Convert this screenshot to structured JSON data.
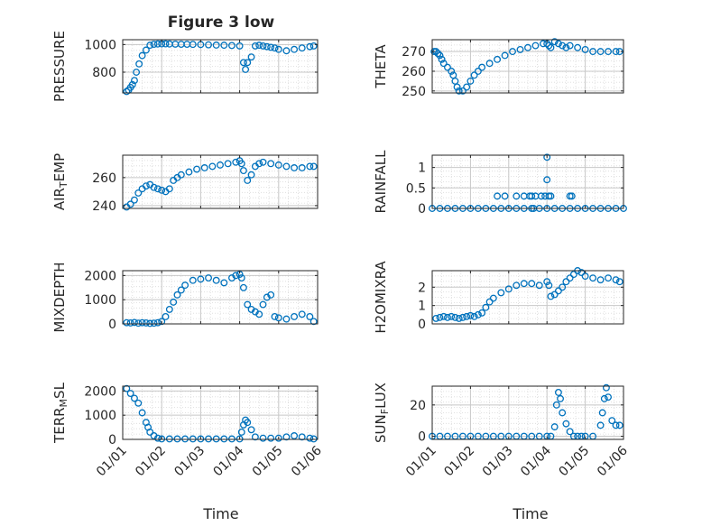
{
  "figure": {
    "title": "Figure 3 low",
    "xlabel": "Time",
    "x_tick_labels": [
      "01/01",
      "01/02",
      "01/03",
      "01/04",
      "01/05",
      "01/06"
    ],
    "marker_color": "#0072BD",
    "marker": "open-circle"
  },
  "chart_data": [
    {
      "id": "pressure",
      "type": "scatter",
      "ylabel": "PRESSURE",
      "ylim": [
        650,
        1035
      ],
      "yticks": [
        800,
        1000
      ],
      "ytick_labels": [
        "800",
        "1000"
      ],
      "xlim": [
        0,
        5
      ],
      "grid": true,
      "minor_grid": true,
      "x": [
        0.1,
        0.15,
        0.2,
        0.25,
        0.3,
        0.35,
        0.42,
        0.5,
        0.6,
        0.7,
        0.8,
        0.9,
        1.0,
        1.1,
        1.2,
        1.35,
        1.5,
        1.65,
        1.8,
        2.0,
        2.2,
        2.4,
        2.6,
        2.8,
        3.0,
        3.1,
        3.15,
        3.2,
        3.3,
        3.4,
        3.5,
        3.6,
        3.7,
        3.8,
        3.9,
        4.0,
        4.2,
        4.4,
        4.6,
        4.8,
        4.9
      ],
      "y": [
        660,
        670,
        690,
        710,
        740,
        800,
        860,
        920,
        960,
        995,
        1002,
        1004,
        1005,
        1005,
        1004,
        1003,
        1002,
        1002,
        1001,
        1000,
        998,
        996,
        995,
        993,
        990,
        870,
        820,
        870,
        910,
        990,
        995,
        990,
        985,
        980,
        975,
        965,
        955,
        965,
        975,
        985,
        990
      ]
    },
    {
      "id": "theta",
      "type": "scatter",
      "ylabel": "THETA",
      "ylim": [
        249,
        276
      ],
      "yticks": [
        250,
        260,
        270
      ],
      "ytick_labels": [
        "250",
        "260",
        "270"
      ],
      "xlim": [
        0,
        5
      ],
      "grid": true,
      "minor_grid": true,
      "x": [
        0.05,
        0.1,
        0.15,
        0.2,
        0.25,
        0.3,
        0.4,
        0.5,
        0.55,
        0.6,
        0.65,
        0.7,
        0.8,
        0.9,
        1.0,
        1.1,
        1.2,
        1.3,
        1.5,
        1.7,
        1.9,
        2.1,
        2.3,
        2.5,
        2.7,
        2.9,
        3.0,
        3.05,
        3.1,
        3.2,
        3.3,
        3.4,
        3.5,
        3.6,
        3.8,
        4.0,
        4.2,
        4.4,
        4.6,
        4.8,
        4.9
      ],
      "y": [
        270,
        270,
        269,
        268,
        266,
        264,
        262,
        260,
        258,
        255,
        252,
        250,
        250,
        252,
        255,
        258,
        260,
        262,
        264,
        266,
        268,
        270,
        271,
        272,
        273,
        274,
        274,
        273,
        272,
        275,
        274,
        273,
        272,
        273,
        272,
        271,
        270,
        270,
        270,
        270,
        270
      ]
    },
    {
      "id": "air_temp",
      "type": "scatter",
      "ylabel": "AIR_TEMP",
      "ylim": [
        238,
        276
      ],
      "yticks": [
        240,
        260
      ],
      "ytick_labels": [
        "240",
        "260"
      ],
      "xlim": [
        0,
        5
      ],
      "grid": true,
      "minor_grid": true,
      "x": [
        0.1,
        0.2,
        0.3,
        0.4,
        0.5,
        0.6,
        0.7,
        0.8,
        0.9,
        1.0,
        1.1,
        1.2,
        1.3,
        1.4,
        1.5,
        1.7,
        1.9,
        2.1,
        2.3,
        2.5,
        2.7,
        2.9,
        3.0,
        3.05,
        3.1,
        3.2,
        3.3,
        3.4,
        3.5,
        3.6,
        3.8,
        4.0,
        4.2,
        4.4,
        4.6,
        4.8,
        4.9
      ],
      "y": [
        239,
        241,
        244,
        249,
        252,
        254,
        255,
        253,
        252,
        251,
        250,
        252,
        258,
        260,
        262,
        264,
        266,
        267,
        268,
        269,
        270,
        271,
        272,
        270,
        265,
        258,
        262,
        268,
        270,
        271,
        270,
        269,
        268,
        267,
        267,
        268,
        268
      ]
    },
    {
      "id": "rainfall",
      "type": "scatter",
      "ylabel": "RAINFALL",
      "ylim": [
        0,
        1.3
      ],
      "yticks": [
        0,
        0.5,
        1
      ],
      "ytick_labels": [
        "0",
        "0.5",
        "1"
      ],
      "xlim": [
        0,
        5
      ],
      "grid": true,
      "minor_grid": true,
      "x": [
        0.0,
        0.2,
        0.4,
        0.6,
        0.8,
        1.0,
        1.2,
        1.4,
        1.6,
        1.8,
        2.0,
        2.2,
        2.4,
        2.6,
        2.8,
        3.0,
        3.2,
        3.4,
        3.6,
        3.8,
        4.0,
        4.2,
        4.4,
        4.6,
        4.8,
        5.0,
        1.7,
        1.9,
        2.2,
        2.4,
        2.55,
        2.7,
        2.85,
        2.95,
        3.05,
        3.1,
        2.6,
        3.0,
        3.0,
        3.6,
        3.65,
        2.65
      ],
      "y": [
        0,
        0,
        0,
        0,
        0,
        0,
        0,
        0,
        0,
        0,
        0,
        0,
        0,
        0,
        0,
        0,
        0,
        0,
        0,
        0,
        0,
        0,
        0,
        0,
        0,
        0,
        0.3,
        0.3,
        0.3,
        0.3,
        0.3,
        0.3,
        0.3,
        0.3,
        0.3,
        0.3,
        0.3,
        0.7,
        1.25,
        0.3,
        0.3,
        0
      ]
    },
    {
      "id": "mixdepth",
      "type": "scatter",
      "ylabel": "MIXDEPTH",
      "ylim": [
        0,
        2200
      ],
      "yticks": [
        0,
        1000,
        2000
      ],
      "ytick_labels": [
        "0",
        "1000",
        "2000"
      ],
      "xlim": [
        0,
        5
      ],
      "grid": true,
      "minor_grid": true,
      "x": [
        0.1,
        0.2,
        0.3,
        0.4,
        0.5,
        0.6,
        0.7,
        0.8,
        0.9,
        1.0,
        1.1,
        1.2,
        1.3,
        1.4,
        1.5,
        1.6,
        1.8,
        2.0,
        2.2,
        2.4,
        2.6,
        2.8,
        2.9,
        3.0,
        3.05,
        3.1,
        3.2,
        3.3,
        3.4,
        3.5,
        3.6,
        3.7,
        3.8,
        3.9,
        4.0,
        4.2,
        4.4,
        4.6,
        4.8,
        4.9
      ],
      "y": [
        50,
        40,
        60,
        30,
        50,
        40,
        20,
        30,
        50,
        100,
        300,
        600,
        900,
        1200,
        1400,
        1600,
        1800,
        1850,
        1900,
        1800,
        1700,
        1900,
        2000,
        2050,
        1900,
        1500,
        800,
        600,
        500,
        400,
        800,
        1100,
        1200,
        300,
        250,
        200,
        300,
        400,
        300,
        100
      ]
    },
    {
      "id": "h2omixra",
      "type": "scatter",
      "ylabel": "H2OMIXRA",
      "ylim": [
        0,
        2.9
      ],
      "yticks": [
        0,
        1,
        2
      ],
      "ytick_labels": [
        "0",
        "1",
        "2"
      ],
      "xlim": [
        0,
        5
      ],
      "grid": true,
      "minor_grid": true,
      "x": [
        0.1,
        0.2,
        0.3,
        0.4,
        0.5,
        0.6,
        0.7,
        0.8,
        0.9,
        1.0,
        1.1,
        1.2,
        1.3,
        1.4,
        1.5,
        1.6,
        1.8,
        2.0,
        2.2,
        2.4,
        2.6,
        2.8,
        3.0,
        3.05,
        3.1,
        3.2,
        3.3,
        3.4,
        3.5,
        3.6,
        3.7,
        3.8,
        3.9,
        4.0,
        4.2,
        4.4,
        4.6,
        4.8,
        4.9
      ],
      "y": [
        0.3,
        0.35,
        0.4,
        0.35,
        0.4,
        0.35,
        0.3,
        0.35,
        0.4,
        0.45,
        0.4,
        0.5,
        0.6,
        0.9,
        1.2,
        1.4,
        1.7,
        1.9,
        2.1,
        2.2,
        2.2,
        2.1,
        2.3,
        2.1,
        1.5,
        1.6,
        1.8,
        2.0,
        2.3,
        2.5,
        2.7,
        2.9,
        2.8,
        2.6,
        2.5,
        2.4,
        2.5,
        2.4,
        2.3
      ]
    },
    {
      "id": "terr_msl",
      "type": "scatter",
      "ylabel": "TERR_MSL",
      "ylim": [
        0,
        2200
      ],
      "yticks": [
        0,
        1000,
        2000
      ],
      "ytick_labels": [
        "0",
        "1000",
        "2000"
      ],
      "xlim": [
        0,
        5
      ],
      "grid": true,
      "minor_grid": true,
      "x": [
        0.1,
        0.2,
        0.3,
        0.4,
        0.5,
        0.6,
        0.65,
        0.7,
        0.8,
        0.9,
        1.0,
        1.2,
        1.4,
        1.6,
        1.8,
        2.0,
        2.2,
        2.4,
        2.6,
        2.8,
        3.0,
        3.05,
        3.1,
        3.15,
        3.2,
        3.3,
        3.4,
        3.6,
        3.8,
        4.0,
        4.2,
        4.4,
        4.6,
        4.8,
        4.9
      ],
      "y": [
        2100,
        1900,
        1700,
        1500,
        1100,
        700,
        500,
        300,
        150,
        50,
        20,
        20,
        20,
        20,
        20,
        20,
        20,
        20,
        20,
        20,
        20,
        300,
        600,
        800,
        700,
        400,
        100,
        50,
        50,
        50,
        100,
        150,
        100,
        50,
        20
      ]
    },
    {
      "id": "sun_flux",
      "type": "scatter",
      "ylabel": "SUN_FLUX",
      "ylim": [
        -2,
        32
      ],
      "yticks": [
        0,
        20
      ],
      "ytick_labels": [
        "0",
        "20"
      ],
      "xlim": [
        0,
        5
      ],
      "grid": true,
      "minor_grid": true,
      "x": [
        0.0,
        0.2,
        0.4,
        0.6,
        0.8,
        1.0,
        1.2,
        1.4,
        1.6,
        1.8,
        2.0,
        2.2,
        2.4,
        2.6,
        2.8,
        3.0,
        3.1,
        3.2,
        3.25,
        3.3,
        3.35,
        3.4,
        3.5,
        3.6,
        3.7,
        3.8,
        3.9,
        4.0,
        4.2,
        4.4,
        4.45,
        4.5,
        4.55,
        4.6,
        4.7,
        4.8,
        4.9
      ],
      "y": [
        0,
        0,
        0,
        0,
        0,
        0,
        0,
        0,
        0,
        0,
        0,
        0,
        0,
        0,
        0,
        0,
        0,
        6,
        20,
        28,
        24,
        15,
        8,
        3,
        0,
        0,
        0,
        0,
        0,
        7,
        15,
        24,
        31,
        25,
        10,
        7,
        7
      ]
    }
  ]
}
